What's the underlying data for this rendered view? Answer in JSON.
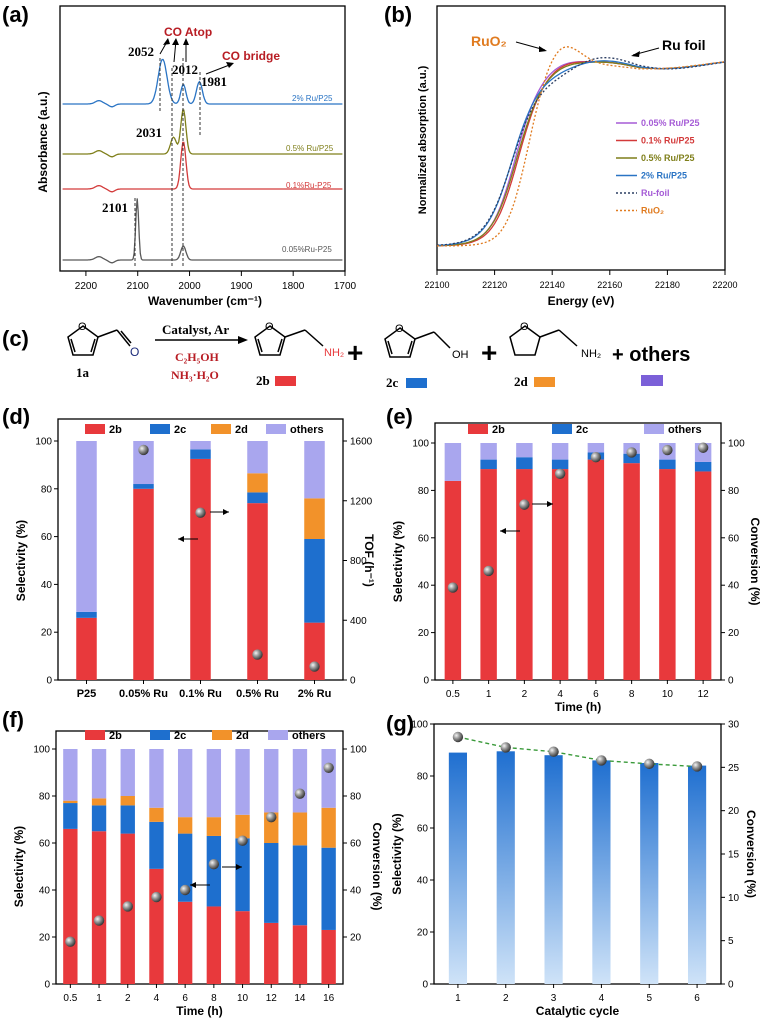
{
  "colors": {
    "red": "#e8393c",
    "blue": "#1e6fce",
    "orange": "#f2922a",
    "purple": "#a9a6ee",
    "dark_red": "#b81d24",
    "green": "#7f7f1a",
    "gray": "#5a5a5a",
    "light_blue": "#8fc1ef",
    "navy": "#1b2a7a",
    "amber": "#e07b20",
    "violet": "#a55bd6",
    "ru_foil": "#2c3e62"
  },
  "chart_data": [
    {
      "id": "a",
      "panel_label": "(a)",
      "type": "line",
      "xlabel": "Wavenumber (cm⁻¹)",
      "ylabel": "Absorbance (a.u.)",
      "xlim": [
        2250,
        1700
      ],
      "xticks": [
        "2200",
        "2100",
        "2000",
        "1900",
        "1800",
        "1700"
      ],
      "series": [
        {
          "name": "2% Ru/P25",
          "color": "#2a74c4",
          "peaks": [
            [
              2052,
              1.6
            ],
            [
              2012,
              0.7
            ],
            [
              1981,
              0.8
            ]
          ],
          "baseline": 0
        },
        {
          "name": "0.5% Ru/P25",
          "color": "#7f7f1a",
          "peaks": [
            [
              2012,
              1.6
            ],
            [
              2031,
              0.6
            ]
          ],
          "baseline": 0
        },
        {
          "name": "0.1%Ru-P25",
          "color": "#d33a3a",
          "peaks": [
            [
              2012,
              1.7
            ]
          ],
          "baseline": 0
        },
        {
          "name": "0.05%Ru-P25",
          "color": "#595959",
          "peaks": [
            [
              2101,
              2.2
            ],
            [
              2012,
              0.5
            ]
          ],
          "baseline": 0
        }
      ],
      "peak_labels": [
        "2052",
        "2012",
        "1981",
        "2031",
        "2101"
      ],
      "annotations": {
        "atop": "CO Atop",
        "bridge": "CO bridge"
      }
    },
    {
      "id": "b",
      "panel_label": "(b)",
      "type": "line",
      "xlabel": "Energy (eV)",
      "ylabel": "Normalized absorption (a.u.)",
      "xlim": [
        22100,
        22200
      ],
      "xticks": [
        "22100",
        "22120",
        "22140",
        "22160",
        "22180",
        "22200"
      ],
      "legend": [
        "0.05% Ru/P25",
        "0.1% Ru/P25",
        "0.5% Ru/P25",
        "2% Ru/P25",
        "Ru-foil",
        "RuO₂"
      ],
      "annotations": {
        "ruo2": "RuO₂",
        "ru_foil": "Ru foil"
      }
    },
    {
      "id": "d",
      "panel_label": "(d)",
      "type": "bar",
      "categories": [
        "P25",
        "0.05% Ru",
        "0.1% Ru",
        "0.5% Ru",
        "2% Ru"
      ],
      "series": [
        {
          "name": "2b",
          "values": [
            26,
            80,
            92.5,
            74,
            24
          ]
        },
        {
          "name": "2c",
          "values": [
            2.5,
            2,
            4,
            4.5,
            35
          ]
        },
        {
          "name": "2d",
          "values": [
            0,
            0,
            0,
            8,
            17
          ]
        },
        {
          "name": "others",
          "values": [
            71.5,
            18,
            3.5,
            13.5,
            24
          ]
        }
      ],
      "tof": [
        null,
        1540,
        1120,
        170,
        90
      ],
      "ylabel": "Selectivity (%)",
      "y2label": "TOF (h⁻¹)",
      "ylim": [
        0,
        100
      ],
      "y2lim": [
        0,
        1600
      ],
      "yticks": [
        "0",
        "20",
        "40",
        "60",
        "80",
        "100"
      ],
      "y2ticks": [
        "0",
        "400",
        "800",
        "1200",
        "1600"
      ]
    },
    {
      "id": "e",
      "panel_label": "(e)",
      "type": "bar",
      "categories": [
        "0.5",
        "1",
        "2",
        "4",
        "6",
        "8",
        "10",
        "12"
      ],
      "series": [
        {
          "name": "2b",
          "values": [
            84,
            89,
            89,
            89,
            93,
            91.5,
            89,
            88
          ]
        },
        {
          "name": "2c",
          "values": [
            0,
            4,
            5,
            4,
            3,
            4,
            4,
            4
          ]
        },
        {
          "name": "others",
          "values": [
            16,
            7,
            6,
            7,
            4,
            4.5,
            7,
            8
          ]
        }
      ],
      "conversion": [
        39,
        46,
        74,
        87,
        94,
        96,
        97,
        98
      ],
      "xlabel": "Time (h)",
      "ylabel": "Selectivity (%)",
      "y2label": "Conversion (%)",
      "ylim": [
        0,
        100
      ],
      "y2lim": [
        0,
        100
      ],
      "yticks": [
        "0",
        "20",
        "40",
        "60",
        "80",
        "100"
      ],
      "y2ticks": [
        "0",
        "20",
        "40",
        "60",
        "80",
        "100"
      ]
    },
    {
      "id": "f",
      "panel_label": "(f)",
      "type": "bar",
      "categories": [
        "0.5",
        "1",
        "2",
        "4",
        "6",
        "8",
        "10",
        "12",
        "14",
        "16"
      ],
      "series": [
        {
          "name": "2b",
          "values": [
            66,
            65,
            64,
            49,
            35,
            33,
            31,
            26,
            25,
            23
          ]
        },
        {
          "name": "2c",
          "values": [
            11,
            11,
            12,
            20,
            29,
            30,
            31,
            34,
            34,
            35
          ]
        },
        {
          "name": "2d",
          "values": [
            1,
            3,
            4,
            6,
            7,
            8,
            10,
            13,
            14,
            17
          ]
        },
        {
          "name": "others",
          "values": [
            22,
            21,
            20,
            25,
            29,
            29,
            28,
            27,
            27,
            25
          ]
        }
      ],
      "conversion": [
        18,
        27,
        33,
        37,
        40,
        51,
        61,
        71,
        81,
        92
      ],
      "xlabel": "Time (h)",
      "ylabel": "Selectivity (%)",
      "y2label": "Conversion (%)",
      "ylim": [
        0,
        100
      ],
      "y2lim": [
        0,
        100
      ],
      "yticks": [
        "0",
        "20",
        "40",
        "60",
        "80",
        "100"
      ],
      "y2ticks": [
        "20",
        "40",
        "60",
        "80",
        "100"
      ]
    },
    {
      "id": "g",
      "panel_label": "(g)",
      "type": "bar",
      "categories": [
        "1",
        "2",
        "3",
        "4",
        "5",
        "6"
      ],
      "values": [
        89,
        89.5,
        88,
        86,
        85,
        84
      ],
      "conversion": [
        28.5,
        27.3,
        26.8,
        25.8,
        25.4,
        25.1
      ],
      "xlabel": "Catalytic cycle",
      "ylabel": "Selectivity (%)",
      "y2label": "Conversion (%)",
      "ylim": [
        0,
        100
      ],
      "y2lim": [
        0,
        30
      ],
      "yticks": [
        "0",
        "20",
        "40",
        "60",
        "80",
        "100"
      ],
      "y2ticks": [
        "0",
        "5",
        "10",
        "15",
        "20",
        "25",
        "30"
      ]
    }
  ],
  "scheme": {
    "panel_label": "(c)",
    "catalyst": "Catalyst, Ar",
    "solvent": "C₂H₅OH",
    "ammonia": "NH₃·H₂O",
    "reactant": "1a",
    "products": [
      "2b",
      "2c",
      "2d"
    ],
    "others": "+ others",
    "plus": "+",
    "o_label": "O",
    "nh2": "NH₂",
    "oh": "OH"
  }
}
